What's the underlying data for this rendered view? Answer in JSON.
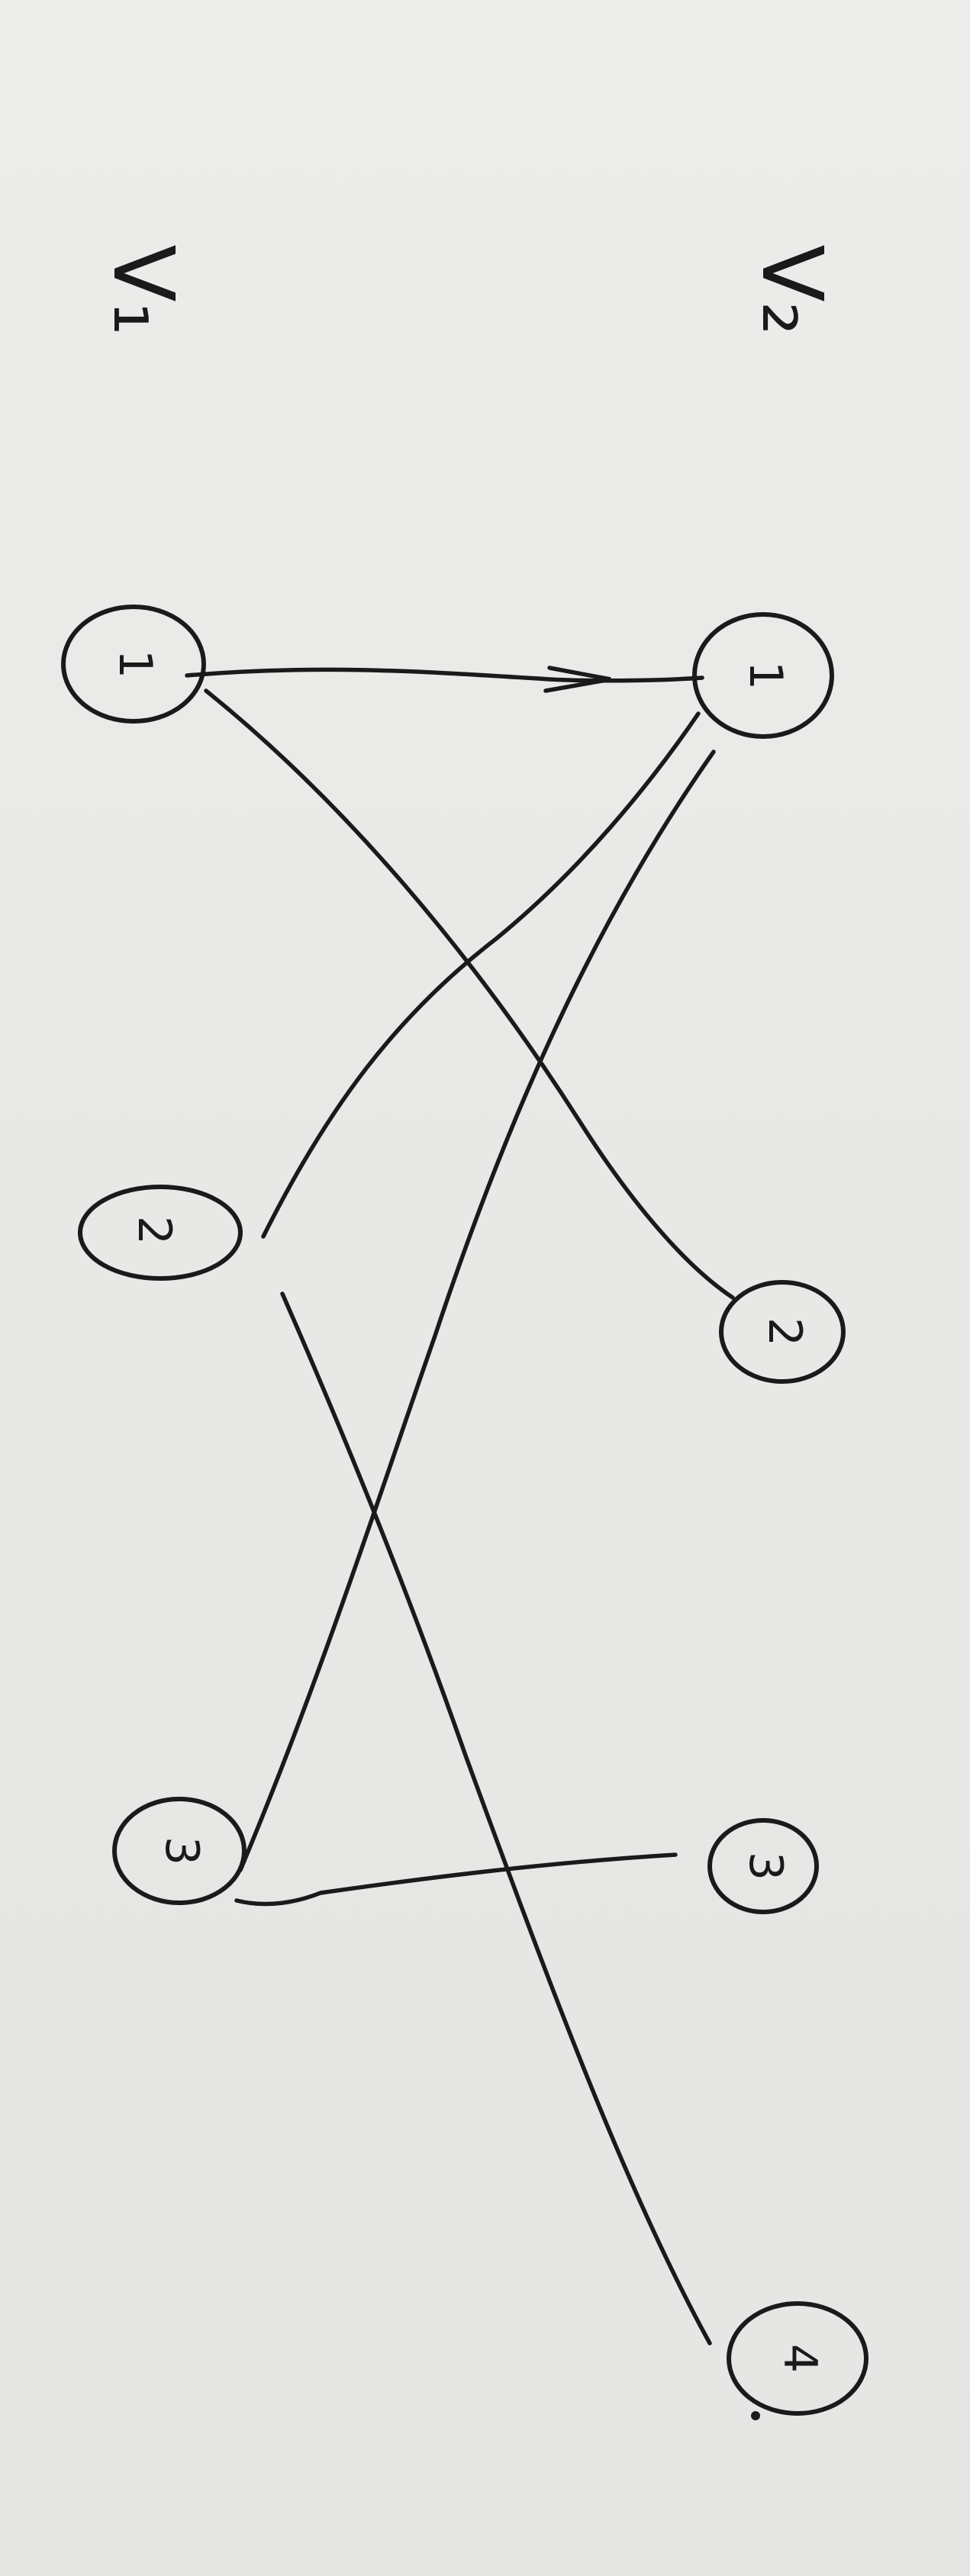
{
  "set_labels": {
    "left": "V₁",
    "right": "V₂"
  },
  "nodes": {
    "v1_1": "1",
    "v1_2": "2",
    "v1_3": "3",
    "v2_1": "1",
    "v2_2": "2",
    "v2_3": "3",
    "v2_4": "4"
  },
  "edges": [
    [
      "v1_1",
      "v2_1"
    ],
    [
      "v1_1",
      "v2_2"
    ],
    [
      "v1_2",
      "v2_1"
    ],
    [
      "v1_2",
      "v2_4"
    ],
    [
      "v1_3",
      "v2_1"
    ],
    [
      "v1_3",
      "v2_3"
    ]
  ]
}
